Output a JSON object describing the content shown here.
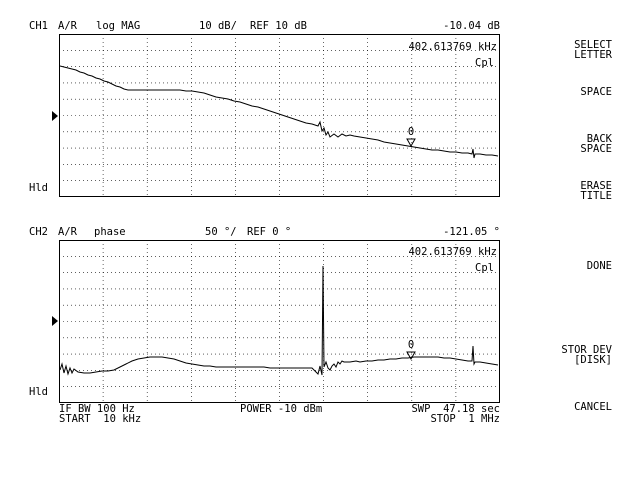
{
  "ch1": {
    "label": "CH1",
    "param": "A/R",
    "format": "log MAG",
    "scale": "10 dB/",
    "ref": "REF 10 dB",
    "marker_value": "-10.04 dB",
    "marker_freq": "402.613769 kHz",
    "cal": "Cpl",
    "hold": "Hld",
    "marker_num": "0"
  },
  "ch2": {
    "label": "CH2",
    "param": "A/R",
    "format": "phase",
    "scale": "50 °/",
    "ref": "REF 0 °",
    "marker_value": "-121.05 °",
    "marker_freq": "402.613769 kHz",
    "cal": "Cpl",
    "hold": "Hld",
    "marker_num": "0"
  },
  "footer": {
    "if_bw": "IF BW 100 Hz",
    "power": "POWER -10 dBm",
    "sweep": "SWP  47.18 sec",
    "start": "START  10 kHz",
    "stop": "STOP  1 MHz"
  },
  "softkeys": [
    {
      "line1": "SELECT",
      "line2": "LETTER"
    },
    {
      "line1": "SPACE",
      "line2": ""
    },
    {
      "line1": "BACK",
      "line2": "SPACE"
    },
    {
      "line1": "ERASE",
      "line2": "TITLE"
    },
    {
      "line1": "DONE",
      "line2": ""
    },
    {
      "line1": "STOR DEV",
      "line2": "[DISK]"
    },
    {
      "line1": "CANCEL",
      "line2": ""
    }
  ]
}
